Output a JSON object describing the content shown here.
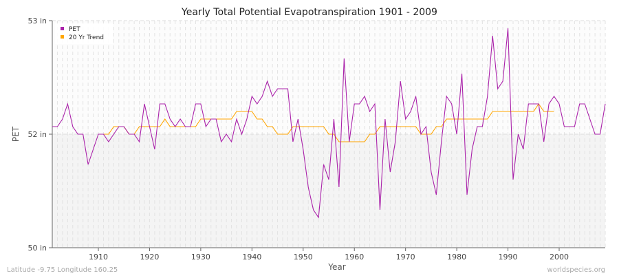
{
  "chart_data": {
    "type": "line",
    "title": "Yearly Total Potential Evapotranspiration 1901 - 2009",
    "xlabel": "Year",
    "ylabel": "PET",
    "xlim": [
      1901,
      2009
    ],
    "ylim": [
      50,
      53
    ],
    "yticks": [
      {
        "value": 50,
        "label": "50 in"
      },
      {
        "value": 51.5,
        "label": "52 in"
      },
      {
        "value": 53,
        "label": "53 in"
      }
    ],
    "xticks": [
      1910,
      1920,
      1930,
      1940,
      1950,
      1960,
      1970,
      1980,
      1990,
      2000
    ],
    "grid": true,
    "legend_position": "top-left",
    "series": [
      {
        "name": "PET",
        "color": "#aa22aa",
        "start_year": 1901,
        "values": [
          51.6,
          51.6,
          51.7,
          51.9,
          51.6,
          51.5,
          51.5,
          51.1,
          51.3,
          51.5,
          51.5,
          51.4,
          51.5,
          51.6,
          51.6,
          51.5,
          51.5,
          51.4,
          51.9,
          51.6,
          51.3,
          51.9,
          51.9,
          51.7,
          51.6,
          51.7,
          51.6,
          51.6,
          51.9,
          51.9,
          51.6,
          51.7,
          51.7,
          51.4,
          51.5,
          51.4,
          51.7,
          51.5,
          51.7,
          52.0,
          51.9,
          52.0,
          52.2,
          52.0,
          52.1,
          52.1,
          52.1,
          51.4,
          51.7,
          51.3,
          50.8,
          50.5,
          50.4,
          51.1,
          50.9,
          51.7,
          50.8,
          52.5,
          51.4,
          51.9,
          51.9,
          52.0,
          51.8,
          51.9,
          50.5,
          51.7,
          51.0,
          51.4,
          52.2,
          51.7,
          51.8,
          52.0,
          51.5,
          51.6,
          51.0,
          50.7,
          51.4,
          52.0,
          51.9,
          51.5,
          52.3,
          50.7,
          51.3,
          51.6,
          51.6,
          52.0,
          52.8,
          52.1,
          52.2,
          52.9,
          50.9,
          51.5,
          51.3,
          51.9,
          51.9,
          51.9,
          51.4,
          51.9,
          52.0,
          51.9,
          51.6,
          51.6,
          51.6,
          51.9,
          51.9,
          51.7,
          51.5,
          51.5,
          51.9
        ]
      },
      {
        "name": "20 Yr Trend",
        "color": "#ffa500",
        "start_year": 1911,
        "values": [
          51.5,
          51.5,
          51.6,
          51.6,
          51.6,
          51.5,
          51.5,
          51.6,
          51.6,
          51.6,
          51.6,
          51.6,
          51.7,
          51.6,
          51.6,
          51.6,
          51.6,
          51.6,
          51.6,
          51.7,
          51.7,
          51.7,
          51.7,
          51.7,
          51.7,
          51.7,
          51.8,
          51.8,
          51.8,
          51.8,
          51.7,
          51.7,
          51.6,
          51.6,
          51.5,
          51.5,
          51.5,
          51.6,
          51.6,
          51.6,
          51.6,
          51.6,
          51.6,
          51.6,
          51.5,
          51.5,
          51.4,
          51.4,
          51.4,
          51.4,
          51.4,
          51.4,
          51.5,
          51.5,
          51.6,
          51.6,
          51.6,
          51.6,
          51.6,
          51.6,
          51.6,
          51.6,
          51.5,
          51.5,
          51.5,
          51.6,
          51.6,
          51.7,
          51.7,
          51.7,
          51.7,
          51.7,
          51.7,
          51.7,
          51.7,
          51.7,
          51.8,
          51.8,
          51.8,
          51.8,
          51.8,
          51.8,
          51.8,
          51.8,
          51.8,
          51.9,
          51.8,
          51.8,
          51.8
        ]
      }
    ]
  },
  "footer": {
    "left": "Latitude -9.75 Longitude 160.25",
    "right": "worldspecies.org"
  }
}
